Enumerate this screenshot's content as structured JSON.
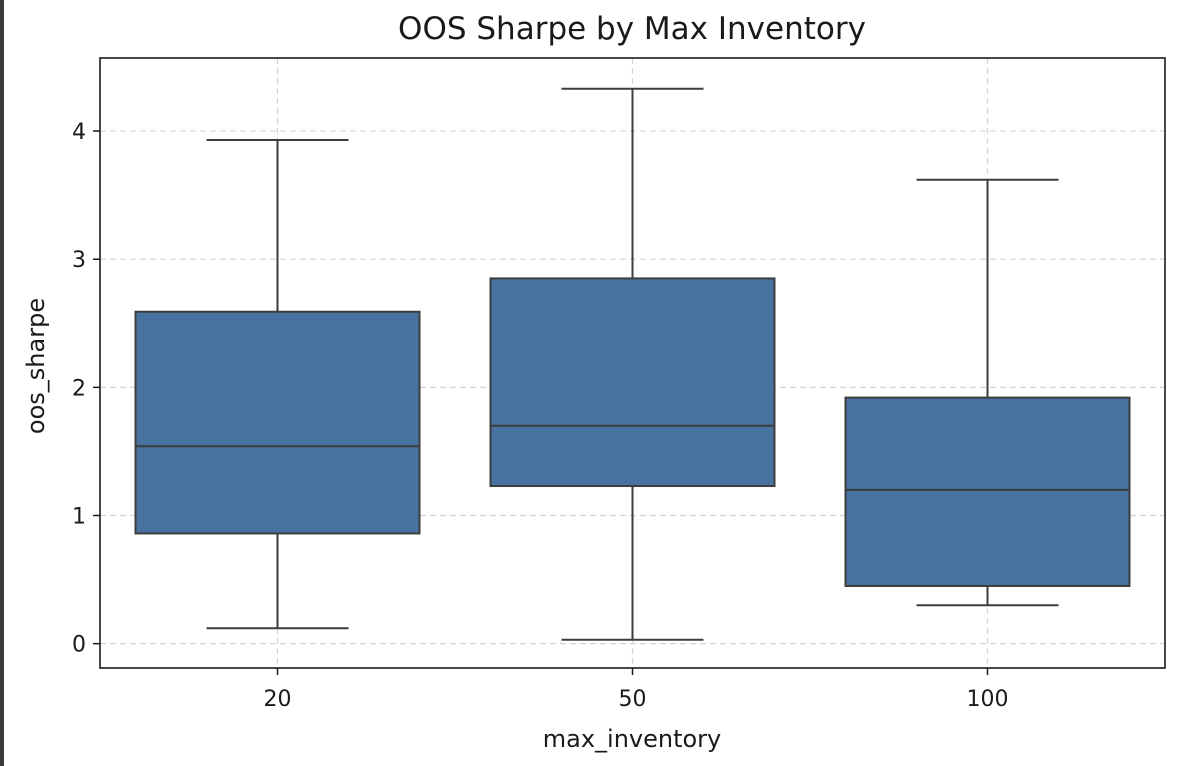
{
  "chart_data": {
    "type": "box",
    "title": "OOS Sharpe by Max Inventory",
    "xlabel": "max_inventory",
    "ylabel": "oos_sharpe",
    "categories": [
      "20",
      "50",
      "100"
    ],
    "boxes": [
      {
        "category": "20",
        "whisker_low": 0.12,
        "q1": 0.86,
        "median": 1.54,
        "q3": 2.59,
        "whisker_high": 3.93
      },
      {
        "category": "50",
        "whisker_low": 0.03,
        "q1": 1.23,
        "median": 1.7,
        "q3": 2.85,
        "whisker_high": 4.33
      },
      {
        "category": "100",
        "whisker_low": 0.3,
        "q1": 0.45,
        "median": 1.2,
        "q3": 1.92,
        "whisker_high": 3.62
      }
    ],
    "yticks": [
      0,
      1,
      2,
      3,
      4
    ],
    "ytick_labels": [
      "0",
      "1",
      "2",
      "3",
      "4"
    ],
    "ylim": [
      -0.19,
      4.57
    ],
    "grid": true,
    "box_color": "#4873a0",
    "edge_color": "#3d3d3d",
    "grid_color": "#d4d4d4"
  }
}
